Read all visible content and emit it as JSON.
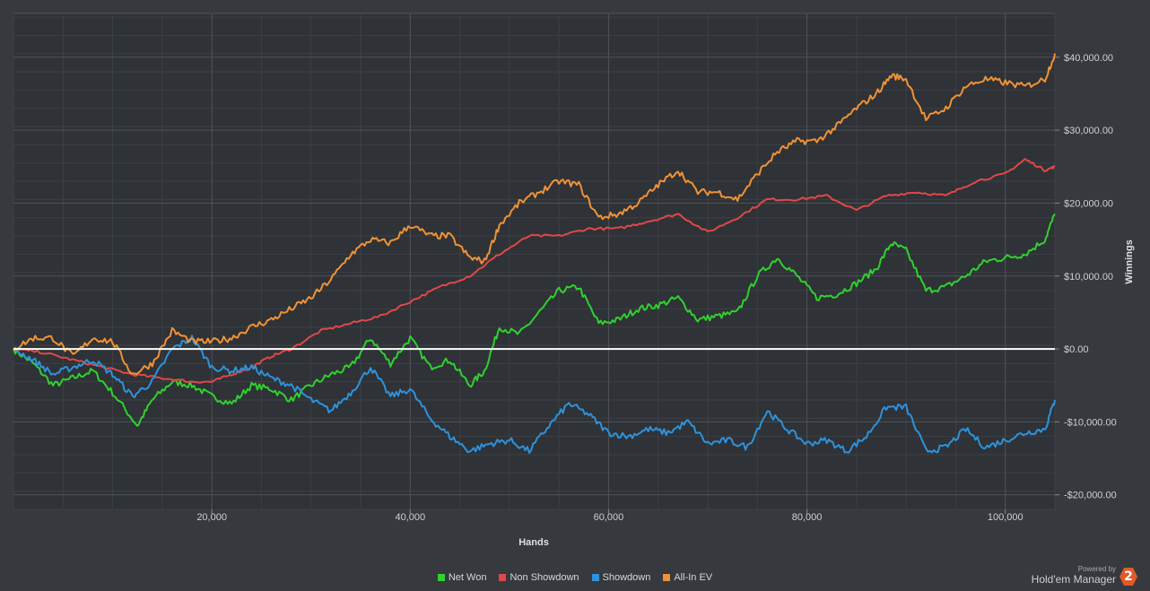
{
  "chart_data": {
    "type": "line",
    "xlabel": "Hands",
    "ylabel": "Winnings",
    "xlim": [
      0,
      105000
    ],
    "ylim": [
      -22000,
      46000
    ],
    "x_ticks": [
      20000,
      40000,
      60000,
      80000,
      100000
    ],
    "x_tick_labels": [
      "20,000",
      "40,000",
      "60,000",
      "80,000",
      "100,000"
    ],
    "y_ticks": [
      40000,
      30000,
      20000,
      10000,
      0,
      -10000,
      -20000
    ],
    "y_tick_labels": [
      "$40,000.00",
      "$30,000.00",
      "$20,000.00",
      "$10,000.00",
      "$0.00",
      "-$10,000.00",
      "-$20,000.00"
    ],
    "grid": true,
    "legend_position": "bottom",
    "series": [
      {
        "name": "Net Won",
        "color": "#2fd12f",
        "x": [
          0,
          2000,
          4000,
          6000,
          8000,
          10000,
          12500,
          14000,
          16000,
          18000,
          20000,
          22000,
          24000,
          26000,
          28000,
          30000,
          32000,
          34000,
          36000,
          38000,
          40000,
          42000,
          44000,
          46000,
          47500,
          49000,
          51000,
          53000,
          55000,
          57000,
          59000,
          61000,
          63000,
          65000,
          67000,
          69000,
          71000,
          73000,
          75000,
          77000,
          79000,
          81000,
          83000,
          85000,
          87000,
          88500,
          90000,
          92000,
          94000,
          96000,
          98000,
          100000,
          102000,
          104000,
          105000
        ],
        "y": [
          0,
          -2000,
          -5000,
          -4000,
          -3000,
          -6000,
          -10500,
          -7000,
          -4500,
          -5000,
          -6500,
          -7500,
          -5000,
          -5500,
          -7000,
          -5000,
          -3500,
          -2500,
          1500,
          -2000,
          1500,
          -2500,
          -1500,
          -5000,
          -3000,
          3000,
          2000,
          5000,
          8000,
          8500,
          3500,
          4000,
          5500,
          6000,
          7000,
          4000,
          4500,
          5000,
          10000,
          12500,
          10000,
          7000,
          7500,
          9000,
          11000,
          14500,
          13500,
          8000,
          8500,
          10000,
          12000,
          12500,
          13000,
          15000,
          18500
        ]
      },
      {
        "name": "Non Showdown",
        "color": "#e04848",
        "x": [
          0,
          3000,
          6000,
          9000,
          12000,
          15000,
          18000,
          20000,
          22000,
          24000,
          26000,
          28000,
          31000,
          34000,
          37000,
          40000,
          43000,
          46000,
          49000,
          52000,
          55000,
          58000,
          61000,
          64000,
          67000,
          70000,
          73000,
          76000,
          79000,
          82000,
          85000,
          88000,
          91000,
          94000,
          97000,
          100000,
          102000,
          104000,
          105000
        ],
        "y": [
          0,
          -500,
          -1500,
          -2500,
          -3500,
          -4000,
          -4500,
          -4500,
          -3500,
          -2500,
          -1000,
          0,
          2500,
          3500,
          4500,
          6500,
          8500,
          10000,
          13000,
          15500,
          15500,
          16500,
          16500,
          17500,
          18500,
          16000,
          18000,
          20500,
          20500,
          21000,
          19000,
          21000,
          21500,
          21000,
          23000,
          24000,
          26000,
          24500,
          25000
        ]
      },
      {
        "name": "Showdown",
        "color": "#2e92dc",
        "x": [
          0,
          2000,
          4000,
          6000,
          8000,
          10000,
          12000,
          14000,
          16000,
          18000,
          20000,
          22000,
          24000,
          26000,
          28000,
          30000,
          32000,
          34000,
          36000,
          38000,
          40000,
          42000,
          44000,
          46000,
          48000,
          50000,
          52000,
          54000,
          56000,
          58000,
          60000,
          62000,
          64000,
          66000,
          68000,
          70000,
          72000,
          74000,
          76000,
          78000,
          80000,
          82000,
          84000,
          86000,
          88000,
          90000,
          92000,
          94000,
          96000,
          98000,
          100000,
          102000,
          104000,
          105000
        ],
        "y": [
          0,
          -1500,
          -3500,
          -2500,
          -1500,
          -3500,
          -6500,
          -4500,
          0,
          1500,
          -2500,
          -3000,
          -2500,
          -4000,
          -5000,
          -7000,
          -8500,
          -6000,
          -2500,
          -6500,
          -5500,
          -9500,
          -12000,
          -14000,
          -13000,
          -12500,
          -14000,
          -10500,
          -7500,
          -9000,
          -11500,
          -12000,
          -11000,
          -11500,
          -10000,
          -13000,
          -12500,
          -13500,
          -8500,
          -11000,
          -13000,
          -12500,
          -14000,
          -12000,
          -8000,
          -8000,
          -14000,
          -13500,
          -11000,
          -13500,
          -12500,
          -11500,
          -11000,
          -7000
        ]
      },
      {
        "name": "All-In EV",
        "color": "#f09236",
        "x": [
          0,
          2000,
          4000,
          6000,
          8000,
          10000,
          12000,
          14000,
          16000,
          18000,
          20000,
          22000,
          24000,
          26000,
          28000,
          30000,
          32000,
          34000,
          36000,
          38000,
          40000,
          42000,
          44000,
          46000,
          47500,
          49000,
          51000,
          53000,
          55000,
          57000,
          59000,
          61000,
          63000,
          65000,
          67000,
          69000,
          71000,
          73000,
          75000,
          77000,
          79000,
          81000,
          83000,
          85000,
          87000,
          88500,
          90000,
          92000,
          94000,
          96000,
          98000,
          100000,
          102000,
          104000,
          105000
        ],
        "y": [
          0,
          1500,
          1500,
          -1000,
          1500,
          1000,
          -3500,
          -2000,
          2500,
          1000,
          1000,
          1500,
          3000,
          4000,
          5500,
          7000,
          9500,
          13000,
          15000,
          14500,
          17000,
          15500,
          15500,
          12500,
          12000,
          17000,
          20000,
          21500,
          23000,
          22500,
          18000,
          18500,
          20000,
          22500,
          24500,
          21500,
          21500,
          20500,
          24000,
          27000,
          28500,
          28500,
          30500,
          33000,
          35000,
          37500,
          37000,
          31500,
          33000,
          36000,
          37000,
          36500,
          36000,
          37000,
          40500
        ]
      }
    ]
  },
  "legend": [
    {
      "label": "Net Won",
      "color": "#2fd12f"
    },
    {
      "label": "Non Showdown",
      "color": "#e04848"
    },
    {
      "label": "Showdown",
      "color": "#2e92dc"
    },
    {
      "label": "All-In EV",
      "color": "#f09236"
    }
  ],
  "brand": {
    "powered_by": "Powered by",
    "name": "Hold'em Manager",
    "logo_text": "2"
  }
}
